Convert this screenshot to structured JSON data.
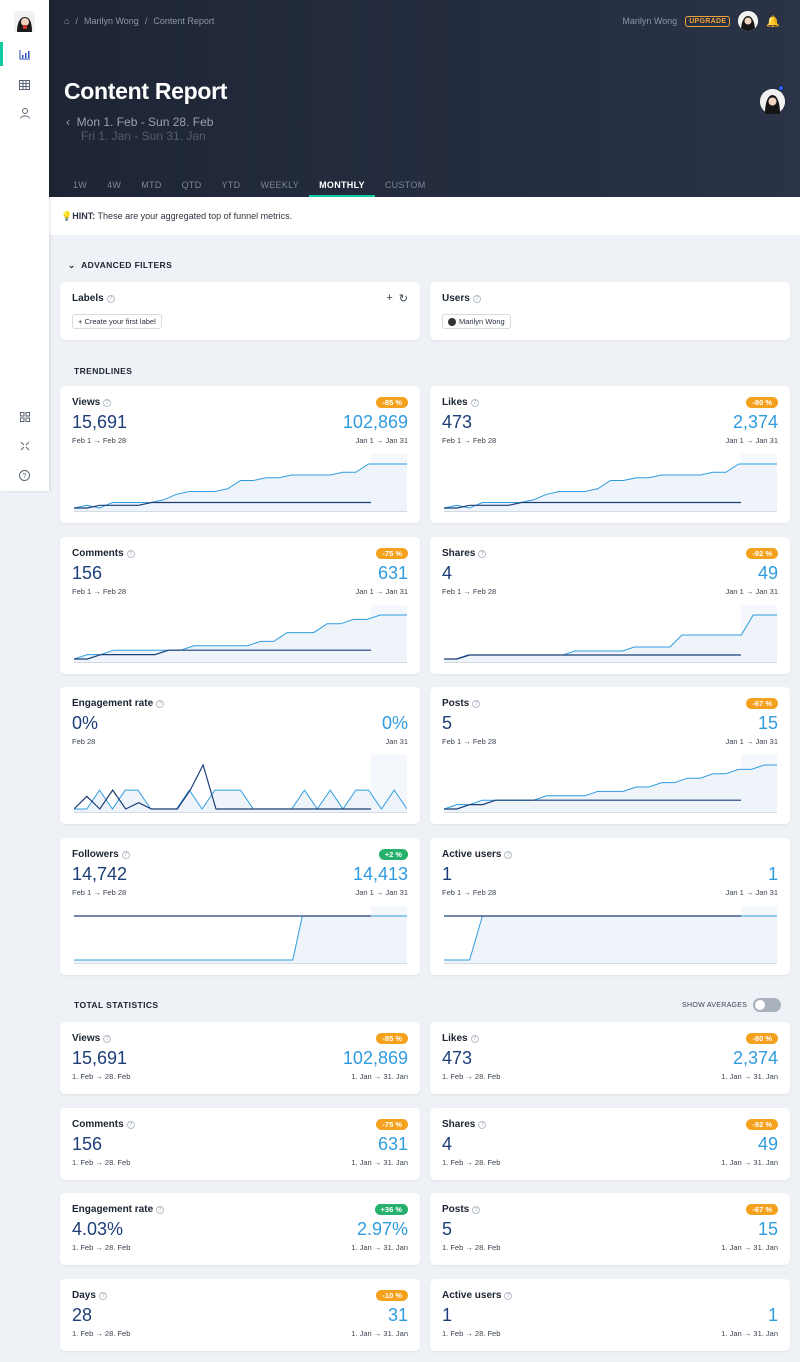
{
  "nav": {
    "breadcrumbs": [
      "Marilyn Wong",
      "Content Report"
    ],
    "user": "Marilyn Wong",
    "upgrade": "UPGRADE"
  },
  "page": {
    "title": "Content Report",
    "date_current": "Mon 1. Feb - Sun 28. Feb",
    "date_compare": "Fri 1. Jan - Sun 31. Jan"
  },
  "tabs": [
    "1W",
    "4W",
    "MTD",
    "QTD",
    "YTD",
    "WEEKLY",
    "MONTHLY",
    "CUSTOM"
  ],
  "active_tab": "MONTHLY",
  "hint": {
    "bold": "HINT:",
    "text": " These are your aggregated top of funnel metrics."
  },
  "filters": {
    "title": "ADVANCED FILTERS",
    "labels": {
      "title": "Labels",
      "button": "+ Create your first label"
    },
    "users": {
      "title": "Users",
      "chip": "Marilyn Wong"
    }
  },
  "trendlines_title": "TRENDLINES",
  "trendlines": [
    {
      "title": "Views",
      "badge": "-85 %",
      "badge_color": "orange",
      "cur": "15,691",
      "prev": "102,869",
      "cur_range": "Feb 1 → Feb 28",
      "prev_range": "Jan 1 → Jan 31"
    },
    {
      "title": "Likes",
      "badge": "-80 %",
      "badge_color": "orange",
      "cur": "473",
      "prev": "2,374",
      "cur_range": "Feb 1 → Feb 28",
      "prev_range": "Jan 1 → Jan 31"
    },
    {
      "title": "Comments",
      "badge": "-75 %",
      "badge_color": "orange",
      "cur": "156",
      "prev": "631",
      "cur_range": "Feb 1 → Feb 28",
      "prev_range": "Jan 1 → Jan 31"
    },
    {
      "title": "Shares",
      "badge": "-92 %",
      "badge_color": "orange",
      "cur": "4",
      "prev": "49",
      "cur_range": "Feb 1 → Feb 28",
      "prev_range": "Jan 1 → Jan 31"
    },
    {
      "title": "Engagement rate",
      "badge": "",
      "badge_color": "",
      "cur": "0%",
      "prev": "0%",
      "cur_range": "Feb 28",
      "prev_range": "Jan 31"
    },
    {
      "title": "Posts",
      "badge": "-67 %",
      "badge_color": "orange",
      "cur": "5",
      "prev": "15",
      "cur_range": "Feb 1 → Feb 28",
      "prev_range": "Jan 1 → Jan 31"
    },
    {
      "title": "Followers",
      "badge": "+2 %",
      "badge_color": "green",
      "cur": "14,742",
      "prev": "14,413",
      "cur_range": "Feb 1 → Feb 28",
      "prev_range": "Jan 1 → Jan 31"
    },
    {
      "title": "Active users",
      "badge": "",
      "badge_color": "",
      "cur": "1",
      "prev": "1",
      "cur_range": "Feb 1 → Feb 28",
      "prev_range": "Jan 1 → Jan 31"
    }
  ],
  "chart_data": [
    {
      "type": "line",
      "title": "Views",
      "series": [
        {
          "values": [
            0,
            1,
            0,
            2,
            2,
            2,
            2,
            3,
            5,
            6,
            6,
            6,
            7,
            10,
            10,
            11,
            11,
            12,
            12,
            12,
            12,
            13,
            13,
            16,
            16,
            16,
            16
          ]
        },
        {
          "values": [
            0,
            0,
            1,
            1,
            1,
            1,
            2,
            2,
            2,
            2,
            2,
            2,
            2,
            2,
            2,
            2,
            2,
            2,
            2,
            2,
            2,
            2,
            2,
            2
          ]
        }
      ]
    },
    {
      "type": "line",
      "title": "Likes",
      "series": [
        {
          "values": [
            0,
            1,
            0,
            2,
            2,
            2,
            2,
            3,
            5,
            6,
            6,
            6,
            7,
            10,
            10,
            11,
            11,
            12,
            12,
            12,
            12,
            13,
            13,
            16,
            16,
            16,
            16
          ]
        },
        {
          "values": [
            0,
            0,
            1,
            1,
            1,
            1,
            2,
            2,
            2,
            2,
            2,
            2,
            2,
            2,
            2,
            2,
            2,
            2,
            2,
            2,
            2,
            2,
            2,
            2
          ]
        }
      ]
    },
    {
      "type": "line",
      "title": "Comments",
      "series": [
        {
          "values": [
            0,
            1,
            1,
            2,
            2,
            2,
            2,
            2,
            2,
            3,
            3,
            3,
            3,
            3,
            4,
            4,
            6,
            6,
            6,
            8,
            8,
            9,
            9,
            10,
            10,
            10
          ]
        },
        {
          "values": [
            0,
            0,
            1,
            1,
            1,
            1,
            1,
            2,
            2,
            2,
            2,
            2,
            2,
            2,
            2,
            2,
            2,
            2,
            2,
            2,
            2,
            2,
            2
          ]
        }
      ]
    },
    {
      "type": "line",
      "title": "Shares",
      "series": [
        {
          "values": [
            0,
            0,
            1,
            1,
            1,
            1,
            1,
            1,
            1,
            1,
            1,
            2,
            2,
            2,
            2,
            2,
            3,
            3,
            3,
            3,
            6,
            6,
            6,
            6,
            6,
            6,
            11,
            11,
            11
          ]
        },
        {
          "values": [
            0,
            0,
            1,
            1,
            1,
            1,
            1,
            1,
            1,
            1,
            1,
            1,
            1,
            1,
            1,
            1,
            1,
            1,
            1,
            1,
            1,
            1,
            1,
            1
          ]
        }
      ]
    },
    {
      "type": "line",
      "title": "Engagement rate",
      "series": [
        {
          "values": [
            0,
            0,
            3,
            0,
            3,
            3,
            0,
            0,
            0,
            3,
            0,
            3,
            3,
            3,
            0,
            0,
            0,
            0,
            3,
            0,
            3,
            0,
            3,
            3,
            0,
            3,
            0
          ]
        },
        {
          "values": [
            0,
            2,
            0,
            3,
            0,
            1,
            0,
            0,
            0,
            3,
            7,
            0,
            0,
            0,
            0,
            0,
            0,
            0,
            0,
            0,
            0,
            0,
            0,
            0
          ]
        }
      ]
    },
    {
      "type": "line",
      "title": "Posts",
      "series": [
        {
          "values": [
            0,
            1,
            1,
            2,
            2,
            2,
            2,
            2,
            3,
            3,
            3,
            3,
            4,
            4,
            4,
            5,
            5,
            6,
            6,
            7,
            7,
            8,
            8,
            9,
            9,
            10,
            10
          ]
        },
        {
          "values": [
            0,
            0,
            1,
            1,
            2,
            2,
            2,
            2,
            2,
            2,
            2,
            2,
            2,
            2,
            2,
            2,
            2,
            2,
            2,
            2,
            2,
            2,
            2,
            2
          ]
        }
      ]
    },
    {
      "type": "line",
      "title": "Followers",
      "series": [
        {
          "values": [
            0,
            0,
            0,
            0,
            0,
            0,
            0,
            0,
            0,
            0,
            0,
            0,
            0,
            0,
            0,
            0,
            0,
            0,
            0,
            0,
            0,
            0,
            0,
            0,
            10,
            10,
            10,
            10,
            10,
            10,
            10,
            10,
            10,
            10,
            10,
            10
          ]
        },
        {
          "values": [
            10,
            10,
            10,
            10,
            10,
            10,
            10,
            10,
            10,
            10,
            10,
            10,
            10,
            10,
            10,
            10,
            10,
            10,
            10,
            10,
            10,
            10,
            10,
            10,
            10,
            10,
            10
          ]
        }
      ]
    },
    {
      "type": "line",
      "title": "Active users",
      "series": [
        {
          "values": [
            0,
            0,
            0,
            10,
            10,
            10,
            10,
            10,
            10,
            10,
            10,
            10,
            10,
            10,
            10,
            10,
            10,
            10,
            10,
            10,
            10,
            10,
            10,
            10,
            10,
            10,
            10
          ]
        },
        {
          "values": [
            10,
            10,
            10,
            10,
            10,
            10,
            10,
            10,
            10,
            10,
            10,
            10,
            10,
            10,
            10,
            10,
            10,
            10,
            10,
            10,
            10,
            10,
            10,
            10
          ]
        }
      ]
    }
  ],
  "totals_title": "TOTAL STATISTICS",
  "show_averages": "SHOW AVERAGES",
  "totals": [
    {
      "title": "Views",
      "badge": "-85 %",
      "badge_color": "orange",
      "cur": "15,691",
      "prev": "102,869",
      "cur_range": "1. Feb → 28. Feb",
      "prev_range": "1. Jan → 31. Jan"
    },
    {
      "title": "Likes",
      "badge": "-80 %",
      "badge_color": "orange",
      "cur": "473",
      "prev": "2,374",
      "cur_range": "1. Feb → 28. Feb",
      "prev_range": "1. Jan → 31. Jan"
    },
    {
      "title": "Comments",
      "badge": "-75 %",
      "badge_color": "orange",
      "cur": "156",
      "prev": "631",
      "cur_range": "1. Feb → 28. Feb",
      "prev_range": "1. Jan → 31. Jan"
    },
    {
      "title": "Shares",
      "badge": "-92 %",
      "badge_color": "orange",
      "cur": "4",
      "prev": "49",
      "cur_range": "1. Feb → 28. Feb",
      "prev_range": "1. Jan → 31. Jan"
    },
    {
      "title": "Engagement rate",
      "badge": "+36 %",
      "badge_color": "green",
      "cur": "4.03%",
      "prev": "2.97%",
      "cur_range": "1. Feb → 28. Feb",
      "prev_range": "1. Jan → 31. Jan"
    },
    {
      "title": "Posts",
      "badge": "-67 %",
      "badge_color": "orange",
      "cur": "5",
      "prev": "15",
      "cur_range": "1. Feb → 28. Feb",
      "prev_range": "1. Jan → 31. Jan"
    },
    {
      "title": "Days",
      "badge": "-10 %",
      "badge_color": "orange",
      "cur": "28",
      "prev": "31",
      "cur_range": "1. Feb → 28. Feb",
      "prev_range": "1. Jan → 31. Jan"
    },
    {
      "title": "Active users",
      "badge": "",
      "badge_color": "",
      "cur": "1",
      "prev": "1",
      "cur_range": "1. Feb → 28. Feb",
      "prev_range": "1. Jan → 31. Jan"
    }
  ]
}
